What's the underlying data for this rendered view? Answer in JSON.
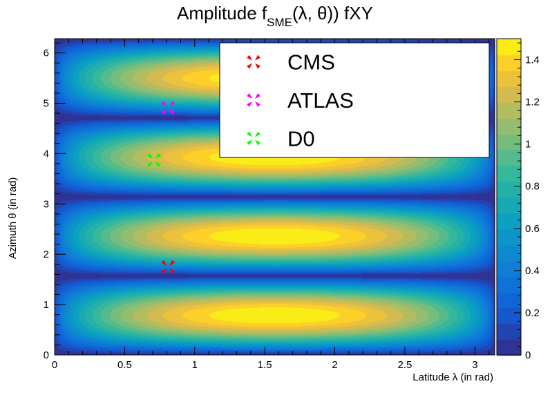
{
  "chart_data": {
    "type": "heatmap",
    "title_main": "Amplitude f",
    "title_sub": "SME",
    "title_tail": "(λ, θ)) fXY",
    "xlabel": "Latitude  λ (in rad)",
    "ylabel": "Azimuth  θ (in rad)",
    "xlim": [
      0,
      3.1416
    ],
    "ylim": [
      0,
      6.2832
    ],
    "zlim": [
      0,
      1.5
    ],
    "x_ticks": [
      "0",
      "0.5",
      "1",
      "1.5",
      "2",
      "2.5",
      "3"
    ],
    "y_ticks": [
      "0",
      "1",
      "2",
      "3",
      "4",
      "5",
      "6"
    ],
    "z_ticks": [
      "0",
      "0.2",
      "0.4",
      "0.6",
      "0.8",
      "1",
      "1.2",
      "1.4"
    ],
    "x_tick_values": [
      0,
      0.5,
      1,
      1.5,
      2,
      2.5,
      3
    ],
    "y_tick_values": [
      0,
      1,
      2,
      3,
      4,
      5,
      6
    ],
    "z_tick_values": [
      0,
      0.2,
      0.4,
      0.6,
      0.8,
      1.0,
      1.2,
      1.4
    ],
    "levels": 20,
    "legend_position": "top-right",
    "series": [
      {
        "name": "CMS",
        "color": "#ff0000",
        "x": 0.81,
        "y": 1.75
      },
      {
        "name": "ATLAS",
        "color": "#ff00ff",
        "x": 0.81,
        "y": 4.91
      },
      {
        "name": "D0",
        "color": "#00ff00",
        "x": 0.71,
        "y": 3.87
      }
    ]
  }
}
